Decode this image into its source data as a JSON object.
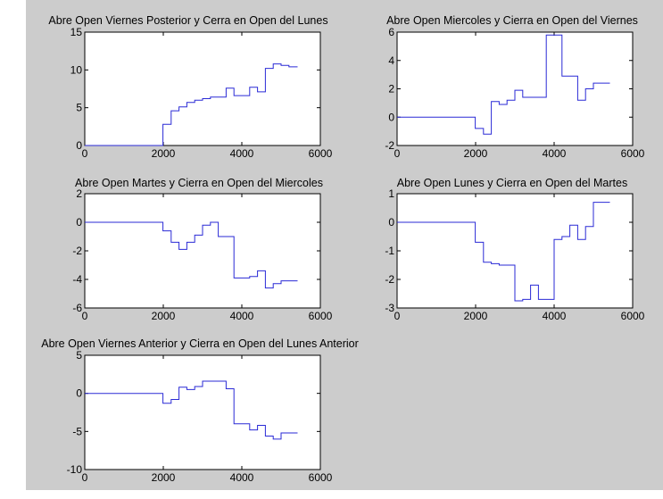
{
  "figure": {
    "background": "#cccccc",
    "axes_background": "#ffffff",
    "line_color": "#2a2ad6",
    "axis_color": "#000000"
  },
  "chart_data": [
    {
      "type": "line",
      "title": "Abre Open Viernes Posterior y Cerra en Open del Lunes",
      "xlabel": "",
      "ylabel": "",
      "xlim": [
        0,
        6000
      ],
      "ylim": [
        0,
        15
      ],
      "xticks": [
        0,
        2000,
        4000,
        6000
      ],
      "yticks": [
        0,
        5,
        10,
        15
      ],
      "grid": false,
      "series": [
        {
          "x": [
            0,
            1990,
            1990,
            2200,
            2200,
            2400,
            2400,
            2600,
            2600,
            2800,
            2800,
            3000,
            3000,
            3200,
            3200,
            3400,
            3400,
            3600,
            3600,
            3800,
            3800,
            4000,
            4000,
            4200,
            4200,
            4400,
            4400,
            4600,
            4600,
            4800,
            4800,
            5000,
            5000,
            5200,
            5200,
            5420
          ],
          "y": [
            0,
            0,
            2.8,
            2.8,
            4.6,
            4.6,
            5.1,
            5.1,
            5.7,
            5.7,
            6.0,
            6.0,
            6.2,
            6.2,
            6.4,
            6.4,
            6.4,
            6.4,
            7.6,
            7.6,
            6.6,
            6.6,
            6.6,
            6.6,
            7.7,
            7.7,
            7.1,
            7.1,
            10.2,
            10.2,
            10.8,
            10.8,
            10.6,
            10.6,
            10.4,
            10.4
          ]
        }
      ]
    },
    {
      "type": "line",
      "title": "Abre Open Miercoles y Cierra en Open del Viernes",
      "xlabel": "",
      "ylabel": "",
      "xlim": [
        0,
        6000
      ],
      "ylim": [
        -2,
        6
      ],
      "xticks": [
        0,
        2000,
        4000,
        6000
      ],
      "yticks": [
        -2,
        0,
        2,
        4,
        6
      ],
      "grid": false,
      "series": [
        {
          "x": [
            0,
            1990,
            1990,
            2200,
            2200,
            2400,
            2400,
            2600,
            2600,
            2800,
            2800,
            3000,
            3000,
            3200,
            3200,
            3400,
            3400,
            3600,
            3600,
            3800,
            3800,
            4000,
            4000,
            4200,
            4200,
            4400,
            4400,
            4600,
            4600,
            4800,
            4800,
            5000,
            5000,
            5200,
            5200,
            5420
          ],
          "y": [
            0,
            0,
            -0.8,
            -0.8,
            -1.2,
            -1.2,
            1.1,
            1.1,
            0.9,
            0.9,
            1.2,
            1.2,
            1.9,
            1.9,
            1.4,
            1.4,
            1.4,
            1.4,
            1.4,
            1.4,
            5.8,
            5.8,
            5.8,
            5.8,
            2.9,
            2.9,
            2.9,
            2.9,
            1.2,
            1.2,
            2.0,
            2.0,
            2.4,
            2.4,
            2.4,
            2.4
          ]
        }
      ]
    },
    {
      "type": "line",
      "title": "Abre Open Martes y Cierra en Open del Miercoles",
      "xlabel": "",
      "ylabel": "",
      "xlim": [
        0,
        6000
      ],
      "ylim": [
        -6,
        2
      ],
      "xticks": [
        0,
        2000,
        4000,
        6000
      ],
      "yticks": [
        -6,
        -4,
        -2,
        0,
        2
      ],
      "grid": false,
      "series": [
        {
          "x": [
            0,
            1990,
            1990,
            2200,
            2200,
            2400,
            2400,
            2600,
            2600,
            2800,
            2800,
            3000,
            3000,
            3200,
            3200,
            3400,
            3400,
            3600,
            3600,
            3800,
            3800,
            4000,
            4000,
            4200,
            4200,
            4400,
            4400,
            4600,
            4600,
            4800,
            4800,
            5000,
            5000,
            5200,
            5200,
            5420
          ],
          "y": [
            0,
            0,
            -0.6,
            -0.6,
            -1.4,
            -1.4,
            -1.9,
            -1.9,
            -1.4,
            -1.4,
            -0.9,
            -0.9,
            -0.2,
            -0.2,
            0.0,
            0.0,
            -1.0,
            -1.0,
            -1.0,
            -1.0,
            -3.9,
            -3.9,
            -3.9,
            -3.9,
            -3.8,
            -3.8,
            -3.4,
            -3.4,
            -4.6,
            -4.6,
            -4.3,
            -4.3,
            -4.1,
            -4.1,
            -4.1,
            -4.1
          ]
        }
      ]
    },
    {
      "type": "line",
      "title": "Abre Open Lunes y Cierra en Open del Martes",
      "xlabel": "",
      "ylabel": "",
      "xlim": [
        0,
        6000
      ],
      "ylim": [
        -3,
        1
      ],
      "xticks": [
        0,
        2000,
        4000,
        6000
      ],
      "yticks": [
        -3,
        -2,
        -1,
        0,
        1
      ],
      "grid": false,
      "series": [
        {
          "x": [
            0,
            1990,
            1990,
            2200,
            2200,
            2400,
            2400,
            2600,
            2600,
            2800,
            2800,
            3000,
            3000,
            3200,
            3200,
            3400,
            3400,
            3600,
            3600,
            3800,
            3800,
            4000,
            4000,
            4200,
            4200,
            4400,
            4400,
            4600,
            4600,
            4800,
            4800,
            5000,
            5000,
            5200,
            5200,
            5420
          ],
          "y": [
            0,
            0,
            -0.7,
            -0.7,
            -1.4,
            -1.4,
            -1.45,
            -1.45,
            -1.5,
            -1.5,
            -1.5,
            -1.5,
            -2.75,
            -2.75,
            -2.7,
            -2.7,
            -2.2,
            -2.2,
            -2.7,
            -2.7,
            -2.7,
            -2.7,
            -0.6,
            -0.6,
            -0.5,
            -0.5,
            -0.1,
            -0.1,
            -0.6,
            -0.6,
            -0.15,
            -0.15,
            0.7,
            0.7,
            0.7,
            0.7
          ]
        }
      ]
    },
    {
      "type": "line",
      "title": "Abre Open Viernes Anterior y Cierra en Open del Lunes Anterior",
      "xlabel": "",
      "ylabel": "",
      "xlim": [
        0,
        6000
      ],
      "ylim": [
        -10,
        5
      ],
      "xticks": [
        0,
        2000,
        4000,
        6000
      ],
      "yticks": [
        -10,
        -5,
        0,
        5
      ],
      "grid": false,
      "series": [
        {
          "x": [
            0,
            1990,
            1990,
            2200,
            2200,
            2400,
            2400,
            2600,
            2600,
            2800,
            2800,
            3000,
            3000,
            3200,
            3200,
            3400,
            3400,
            3600,
            3600,
            3800,
            3800,
            4000,
            4000,
            4200,
            4200,
            4400,
            4400,
            4600,
            4600,
            4800,
            4800,
            5000,
            5000,
            5200,
            5200,
            5420
          ],
          "y": [
            0,
            0,
            -1.3,
            -1.3,
            -0.8,
            -0.8,
            0.8,
            0.8,
            0.5,
            0.5,
            0.9,
            0.9,
            1.6,
            1.6,
            1.6,
            1.6,
            1.6,
            1.6,
            0.6,
            0.6,
            -4.0,
            -4.0,
            -4.0,
            -4.0,
            -4.8,
            -4.8,
            -4.2,
            -4.2,
            -5.6,
            -5.6,
            -6.0,
            -6.0,
            -5.2,
            -5.2,
            -5.2,
            -5.2
          ]
        }
      ]
    }
  ]
}
